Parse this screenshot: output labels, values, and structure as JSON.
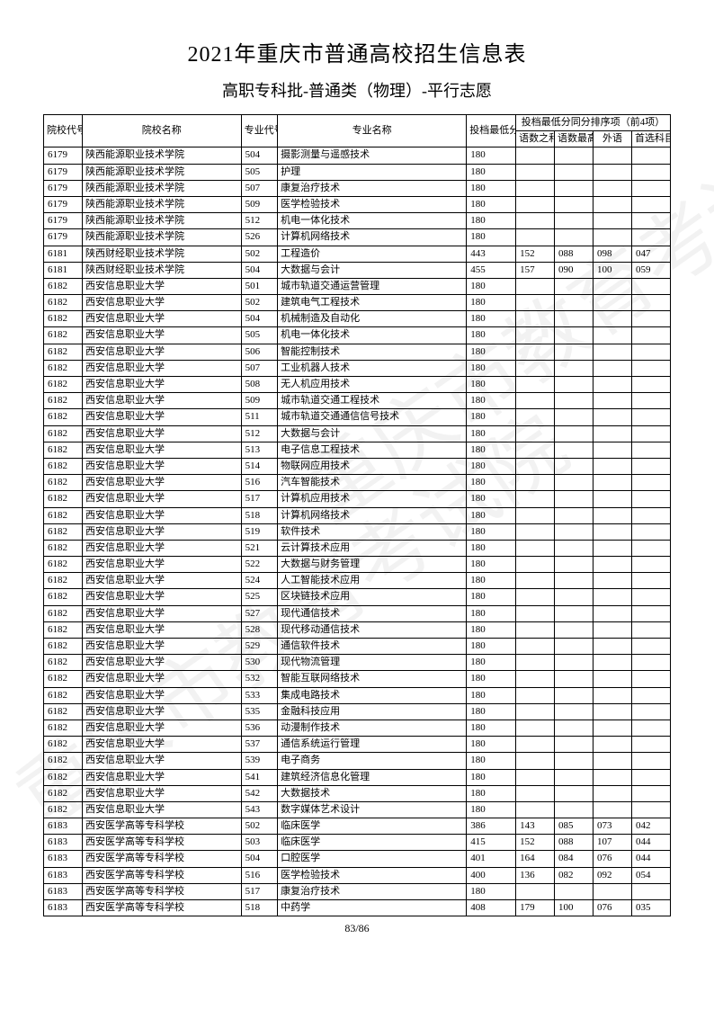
{
  "title": "2021年重庆市普通高校招生信息表",
  "subtitle": "高职专科批-普通类（物理）-平行志愿",
  "footer": "83/86",
  "watermark": "重庆市教育考试院",
  "headers": {
    "schoolCode": "院校代号",
    "schoolName": "院校名称",
    "majorCode": "专业代号",
    "majorName": "专业名称",
    "minScore": "投档最低分",
    "sortGroup": "投档最低分同分排序项（前4项）",
    "s1": "语数之和",
    "s2": "语数最高",
    "s3": "外语",
    "s4": "首选科目"
  },
  "rows": [
    {
      "c": "6179",
      "n": "陕西能源职业技术学院",
      "mc": "504",
      "mn": "摄影测量与遥感技术",
      "sc": "180",
      "s1": "",
      "s2": "",
      "s3": "",
      "s4": ""
    },
    {
      "c": "6179",
      "n": "陕西能源职业技术学院",
      "mc": "505",
      "mn": "护理",
      "sc": "180",
      "s1": "",
      "s2": "",
      "s3": "",
      "s4": ""
    },
    {
      "c": "6179",
      "n": "陕西能源职业技术学院",
      "mc": "507",
      "mn": "康复治疗技术",
      "sc": "180",
      "s1": "",
      "s2": "",
      "s3": "",
      "s4": ""
    },
    {
      "c": "6179",
      "n": "陕西能源职业技术学院",
      "mc": "509",
      "mn": "医学检验技术",
      "sc": "180",
      "s1": "",
      "s2": "",
      "s3": "",
      "s4": ""
    },
    {
      "c": "6179",
      "n": "陕西能源职业技术学院",
      "mc": "512",
      "mn": "机电一体化技术",
      "sc": "180",
      "s1": "",
      "s2": "",
      "s3": "",
      "s4": ""
    },
    {
      "c": "6179",
      "n": "陕西能源职业技术学院",
      "mc": "526",
      "mn": "计算机网络技术",
      "sc": "180",
      "s1": "",
      "s2": "",
      "s3": "",
      "s4": ""
    },
    {
      "c": "6181",
      "n": "陕西财经职业技术学院",
      "mc": "502",
      "mn": "工程造价",
      "sc": "443",
      "s1": "152",
      "s2": "088",
      "s3": "098",
      "s4": "047"
    },
    {
      "c": "6181",
      "n": "陕西财经职业技术学院",
      "mc": "504",
      "mn": "大数据与会计",
      "sc": "455",
      "s1": "157",
      "s2": "090",
      "s3": "100",
      "s4": "059"
    },
    {
      "c": "6182",
      "n": "西安信息职业大学",
      "mc": "501",
      "mn": "城市轨道交通运营管理",
      "sc": "180",
      "s1": "",
      "s2": "",
      "s3": "",
      "s4": ""
    },
    {
      "c": "6182",
      "n": "西安信息职业大学",
      "mc": "502",
      "mn": "建筑电气工程技术",
      "sc": "180",
      "s1": "",
      "s2": "",
      "s3": "",
      "s4": ""
    },
    {
      "c": "6182",
      "n": "西安信息职业大学",
      "mc": "504",
      "mn": "机械制造及自动化",
      "sc": "180",
      "s1": "",
      "s2": "",
      "s3": "",
      "s4": ""
    },
    {
      "c": "6182",
      "n": "西安信息职业大学",
      "mc": "505",
      "mn": "机电一体化技术",
      "sc": "180",
      "s1": "",
      "s2": "",
      "s3": "",
      "s4": ""
    },
    {
      "c": "6182",
      "n": "西安信息职业大学",
      "mc": "506",
      "mn": "智能控制技术",
      "sc": "180",
      "s1": "",
      "s2": "",
      "s3": "",
      "s4": ""
    },
    {
      "c": "6182",
      "n": "西安信息职业大学",
      "mc": "507",
      "mn": "工业机器人技术",
      "sc": "180",
      "s1": "",
      "s2": "",
      "s3": "",
      "s4": ""
    },
    {
      "c": "6182",
      "n": "西安信息职业大学",
      "mc": "508",
      "mn": "无人机应用技术",
      "sc": "180",
      "s1": "",
      "s2": "",
      "s3": "",
      "s4": ""
    },
    {
      "c": "6182",
      "n": "西安信息职业大学",
      "mc": "509",
      "mn": "城市轨道交通工程技术",
      "sc": "180",
      "s1": "",
      "s2": "",
      "s3": "",
      "s4": ""
    },
    {
      "c": "6182",
      "n": "西安信息职业大学",
      "mc": "511",
      "mn": "城市轨道交通通信信号技术",
      "sc": "180",
      "s1": "",
      "s2": "",
      "s3": "",
      "s4": ""
    },
    {
      "c": "6182",
      "n": "西安信息职业大学",
      "mc": "512",
      "mn": "大数据与会计",
      "sc": "180",
      "s1": "",
      "s2": "",
      "s3": "",
      "s4": ""
    },
    {
      "c": "6182",
      "n": "西安信息职业大学",
      "mc": "513",
      "mn": "电子信息工程技术",
      "sc": "180",
      "s1": "",
      "s2": "",
      "s3": "",
      "s4": ""
    },
    {
      "c": "6182",
      "n": "西安信息职业大学",
      "mc": "514",
      "mn": "物联网应用技术",
      "sc": "180",
      "s1": "",
      "s2": "",
      "s3": "",
      "s4": ""
    },
    {
      "c": "6182",
      "n": "西安信息职业大学",
      "mc": "516",
      "mn": "汽车智能技术",
      "sc": "180",
      "s1": "",
      "s2": "",
      "s3": "",
      "s4": ""
    },
    {
      "c": "6182",
      "n": "西安信息职业大学",
      "mc": "517",
      "mn": "计算机应用技术",
      "sc": "180",
      "s1": "",
      "s2": "",
      "s3": "",
      "s4": ""
    },
    {
      "c": "6182",
      "n": "西安信息职业大学",
      "mc": "518",
      "mn": "计算机网络技术",
      "sc": "180",
      "s1": "",
      "s2": "",
      "s3": "",
      "s4": ""
    },
    {
      "c": "6182",
      "n": "西安信息职业大学",
      "mc": "519",
      "mn": "软件技术",
      "sc": "180",
      "s1": "",
      "s2": "",
      "s3": "",
      "s4": ""
    },
    {
      "c": "6182",
      "n": "西安信息职业大学",
      "mc": "521",
      "mn": "云计算技术应用",
      "sc": "180",
      "s1": "",
      "s2": "",
      "s3": "",
      "s4": ""
    },
    {
      "c": "6182",
      "n": "西安信息职业大学",
      "mc": "522",
      "mn": "大数据与财务管理",
      "sc": "180",
      "s1": "",
      "s2": "",
      "s3": "",
      "s4": ""
    },
    {
      "c": "6182",
      "n": "西安信息职业大学",
      "mc": "524",
      "mn": "人工智能技术应用",
      "sc": "180",
      "s1": "",
      "s2": "",
      "s3": "",
      "s4": ""
    },
    {
      "c": "6182",
      "n": "西安信息职业大学",
      "mc": "525",
      "mn": "区块链技术应用",
      "sc": "180",
      "s1": "",
      "s2": "",
      "s3": "",
      "s4": ""
    },
    {
      "c": "6182",
      "n": "西安信息职业大学",
      "mc": "527",
      "mn": "现代通信技术",
      "sc": "180",
      "s1": "",
      "s2": "",
      "s3": "",
      "s4": ""
    },
    {
      "c": "6182",
      "n": "西安信息职业大学",
      "mc": "528",
      "mn": "现代移动通信技术",
      "sc": "180",
      "s1": "",
      "s2": "",
      "s3": "",
      "s4": ""
    },
    {
      "c": "6182",
      "n": "西安信息职业大学",
      "mc": "529",
      "mn": "通信软件技术",
      "sc": "180",
      "s1": "",
      "s2": "",
      "s3": "",
      "s4": ""
    },
    {
      "c": "6182",
      "n": "西安信息职业大学",
      "mc": "530",
      "mn": "现代物流管理",
      "sc": "180",
      "s1": "",
      "s2": "",
      "s3": "",
      "s4": ""
    },
    {
      "c": "6182",
      "n": "西安信息职业大学",
      "mc": "532",
      "mn": "智能互联网络技术",
      "sc": "180",
      "s1": "",
      "s2": "",
      "s3": "",
      "s4": ""
    },
    {
      "c": "6182",
      "n": "西安信息职业大学",
      "mc": "533",
      "mn": "集成电路技术",
      "sc": "180",
      "s1": "",
      "s2": "",
      "s3": "",
      "s4": ""
    },
    {
      "c": "6182",
      "n": "西安信息职业大学",
      "mc": "535",
      "mn": "金融科技应用",
      "sc": "180",
      "s1": "",
      "s2": "",
      "s3": "",
      "s4": ""
    },
    {
      "c": "6182",
      "n": "西安信息职业大学",
      "mc": "536",
      "mn": "动漫制作技术",
      "sc": "180",
      "s1": "",
      "s2": "",
      "s3": "",
      "s4": ""
    },
    {
      "c": "6182",
      "n": "西安信息职业大学",
      "mc": "537",
      "mn": "通信系统运行管理",
      "sc": "180",
      "s1": "",
      "s2": "",
      "s3": "",
      "s4": ""
    },
    {
      "c": "6182",
      "n": "西安信息职业大学",
      "mc": "539",
      "mn": "电子商务",
      "sc": "180",
      "s1": "",
      "s2": "",
      "s3": "",
      "s4": ""
    },
    {
      "c": "6182",
      "n": "西安信息职业大学",
      "mc": "541",
      "mn": "建筑经济信息化管理",
      "sc": "180",
      "s1": "",
      "s2": "",
      "s3": "",
      "s4": ""
    },
    {
      "c": "6182",
      "n": "西安信息职业大学",
      "mc": "542",
      "mn": "大数据技术",
      "sc": "180",
      "s1": "",
      "s2": "",
      "s3": "",
      "s4": ""
    },
    {
      "c": "6182",
      "n": "西安信息职业大学",
      "mc": "543",
      "mn": "数字媒体艺术设计",
      "sc": "180",
      "s1": "",
      "s2": "",
      "s3": "",
      "s4": ""
    },
    {
      "c": "6183",
      "n": "西安医学高等专科学校",
      "mc": "502",
      "mn": "临床医学",
      "sc": "386",
      "s1": "143",
      "s2": "085",
      "s3": "073",
      "s4": "042"
    },
    {
      "c": "6183",
      "n": "西安医学高等专科学校",
      "mc": "503",
      "mn": "临床医学",
      "sc": "415",
      "s1": "152",
      "s2": "088",
      "s3": "107",
      "s4": "044"
    },
    {
      "c": "6183",
      "n": "西安医学高等专科学校",
      "mc": "504",
      "mn": "口腔医学",
      "sc": "401",
      "s1": "164",
      "s2": "084",
      "s3": "076",
      "s4": "044"
    },
    {
      "c": "6183",
      "n": "西安医学高等专科学校",
      "mc": "516",
      "mn": "医学检验技术",
      "sc": "400",
      "s1": "136",
      "s2": "082",
      "s3": "092",
      "s4": "054"
    },
    {
      "c": "6183",
      "n": "西安医学高等专科学校",
      "mc": "517",
      "mn": "康复治疗技术",
      "sc": "180",
      "s1": "",
      "s2": "",
      "s3": "",
      "s4": ""
    },
    {
      "c": "6183",
      "n": "西安医学高等专科学校",
      "mc": "518",
      "mn": "中药学",
      "sc": "408",
      "s1": "179",
      "s2": "100",
      "s3": "076",
      "s4": "035"
    }
  ]
}
